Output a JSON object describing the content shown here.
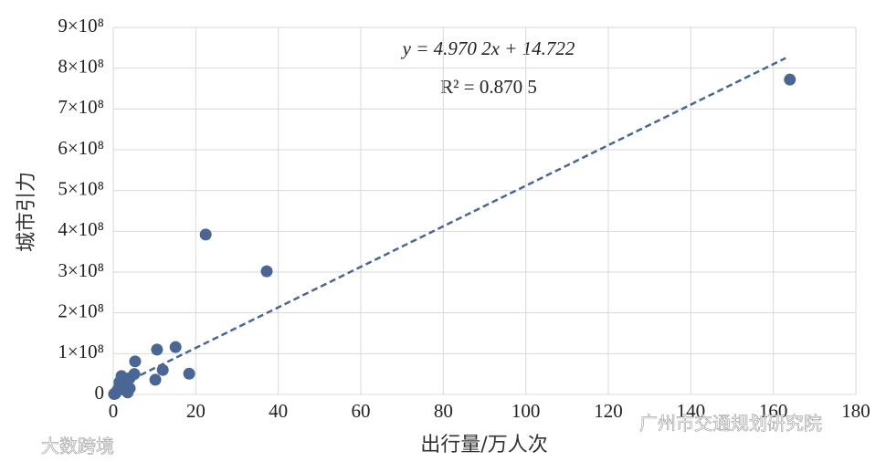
{
  "chart_data": {
    "type": "scatter",
    "xlabel": "出行量/万人次",
    "ylabel": "城市引力",
    "annotations": [
      "y = 4.970 2x + 14.722",
      "R² = 0.870 5"
    ],
    "watermarks": [
      "广州市交通规划研究院",
      "大数跨境"
    ],
    "x": [
      164,
      22.4,
      37.2,
      15.1,
      10.6,
      18.4,
      12,
      10.2,
      5.3,
      5.1,
      4,
      2,
      1.5,
      3,
      4,
      3.5,
      1,
      0.5,
      0.2,
      2.5,
      1.5
    ],
    "y": [
      772000000,
      392000000,
      302000000,
      116000000,
      110000000,
      51000000,
      60000000,
      36000000,
      81000000,
      50000000,
      40000000,
      45000000,
      30000000,
      25000000,
      15000000,
      5000000,
      10000000,
      2000000,
      1000000,
      12000000,
      20000000
    ],
    "color": "#4a6695",
    "trendline": {
      "x": [
        0,
        163
      ],
      "y": [
        14722000,
        824864600
      ],
      "color": "#4a6695"
    },
    "xlim": [
      0,
      180
    ],
    "xticks": [
      0,
      20,
      40,
      60,
      80,
      100,
      120,
      140,
      160,
      180
    ],
    "ylim": [
      0,
      900000000
    ],
    "yticks": [
      0,
      {
        "value": 100000000,
        "label": "1×10⁸"
      },
      {
        "value": 200000000,
        "label": "2×10⁸"
      },
      {
        "value": 300000000,
        "label": "3×10⁸"
      },
      {
        "value": 400000000,
        "label": "4×10⁸"
      },
      {
        "value": 500000000,
        "label": "5×10⁸"
      },
      {
        "value": 600000000,
        "label": "6×10⁸"
      },
      {
        "value": 700000000,
        "label": "7×10⁸"
      },
      {
        "value": 800000000,
        "label": "8×10⁸"
      },
      {
        "value": 900000000,
        "label": "9×10⁸"
      }
    ],
    "grid": true
  }
}
